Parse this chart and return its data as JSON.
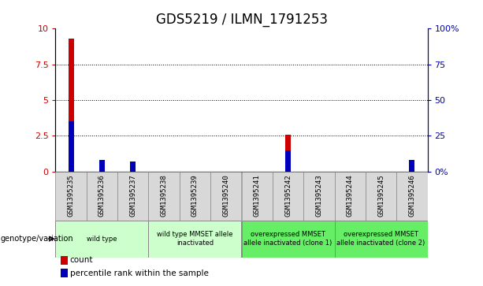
{
  "title": "GDS5219 / ILMN_1791253",
  "samples": [
    "GSM1395235",
    "GSM1395236",
    "GSM1395237",
    "GSM1395238",
    "GSM1395239",
    "GSM1395240",
    "GSM1395241",
    "GSM1395242",
    "GSM1395243",
    "GSM1395244",
    "GSM1395245",
    "GSM1395246"
  ],
  "count_values": [
    9.3,
    0,
    0,
    0,
    0,
    0,
    0,
    2.6,
    0,
    0,
    0,
    0
  ],
  "percentile_values": [
    35,
    8,
    7,
    0,
    0,
    0,
    0,
    15,
    0,
    0,
    0,
    8
  ],
  "ylim_left": [
    0,
    10
  ],
  "ylim_right": [
    0,
    100
  ],
  "yticks_left": [
    0,
    2.5,
    5,
    7.5,
    10
  ],
  "yticks_right": [
    0,
    25,
    50,
    75,
    100
  ],
  "ytick_labels_left": [
    "0",
    "2.5",
    "5",
    "7.5",
    "10"
  ],
  "ytick_labels_right": [
    "0%",
    "25",
    "50",
    "75",
    "100%"
  ],
  "count_color": "#cc0000",
  "percentile_color": "#0000bb",
  "group_defs": [
    {
      "start": 0,
      "end": 2,
      "label": "wild type",
      "color": "#ccffcc"
    },
    {
      "start": 3,
      "end": 5,
      "label": "wild type MMSET allele\ninactivated",
      "color": "#ccffcc"
    },
    {
      "start": 6,
      "end": 8,
      "label": "overexpressed MMSET\nallele inactivated (clone 1)",
      "color": "#66ee66"
    },
    {
      "start": 9,
      "end": 11,
      "label": "overexpressed MMSET\nallele inactivated (clone 2)",
      "color": "#66ee66"
    }
  ],
  "genotype_label": "genotype/variation",
  "legend_count": "count",
  "legend_percentile": "percentile rank within the sample",
  "title_fontsize": 12,
  "axis_fontsize": 8,
  "label_fontsize": 6.5,
  "geno_fontsize": 6.0,
  "legend_fontsize": 7.5,
  "count_bar_width": 0.18,
  "percentile_bar_width": 0.18,
  "sample_box_color": "#d8d8d8",
  "tick_label_color_left": "#cc0000",
  "tick_label_color_right": "#0000bb"
}
